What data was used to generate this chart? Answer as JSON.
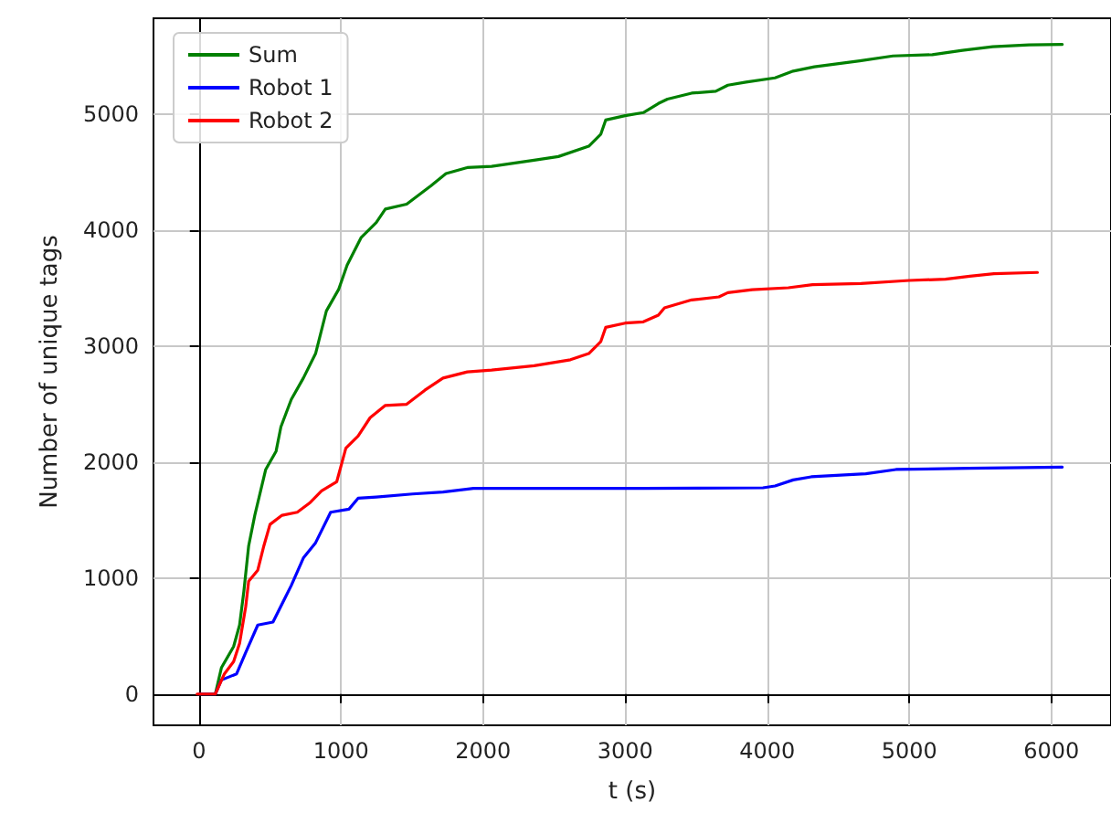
{
  "chart_data": {
    "type": "line",
    "xlabel": "t (s)",
    "ylabel": "Number of unique tags",
    "xlim": [
      -320,
      6420
    ],
    "ylim": [
      -270,
      5830
    ],
    "xticks": [
      0,
      1000,
      2000,
      3000,
      4000,
      5000,
      6000
    ],
    "yticks": [
      0,
      1000,
      2000,
      3000,
      4000,
      5000
    ],
    "grid": true,
    "legend": "top left",
    "marker": "none",
    "line_style": "solid",
    "series": [
      {
        "name": "Sum",
        "color": "#008000",
        "x": [
          0,
          115,
          158,
          244,
          286,
          316,
          350,
          393,
          470,
          543,
          577,
          650,
          735,
          821,
          897,
          983,
          1043,
          1141,
          1248,
          1312,
          1462,
          1632,
          1739,
          1889,
          2060,
          2359,
          2530,
          2744,
          2829,
          2863,
          3000,
          3128,
          3234,
          3298,
          3468,
          3638,
          3723,
          3851,
          4055,
          4183,
          4332,
          4651,
          4885,
          5162,
          5374,
          5587,
          5843,
          6077
        ],
        "values": [
          0,
          0,
          226,
          410,
          595,
          884,
          1279,
          1542,
          1937,
          2095,
          2305,
          2542,
          2726,
          2937,
          3305,
          3490,
          3700,
          3937,
          4068,
          4184,
          4226,
          4384,
          4490,
          4542,
          4552,
          4605,
          4637,
          4726,
          4831,
          4952,
          4990,
          5016,
          5095,
          5132,
          5184,
          5200,
          5253,
          5279,
          5316,
          5374,
          5411,
          5463,
          5505,
          5516,
          5553,
          5584,
          5600,
          5605
        ]
      },
      {
        "name": "Robot 1",
        "color": "#0000ff",
        "x": [
          0,
          115,
          158,
          265,
          329,
          414,
          521,
          607,
          650,
          735,
          821,
          927,
          1056,
          1120,
          1248,
          1504,
          1718,
          1932,
          2359,
          3128,
          3970,
          4055,
          4183,
          4310,
          4694,
          4906,
          5417,
          6077
        ],
        "values": [
          0,
          0,
          121,
          174,
          358,
          595,
          621,
          832,
          937,
          1174,
          1305,
          1568,
          1595,
          1689,
          1700,
          1726,
          1742,
          1774,
          1774,
          1774,
          1779,
          1795,
          1847,
          1874,
          1900,
          1937,
          1947,
          1958
        ]
      },
      {
        "name": "Robot 2",
        "color": "#ff0000",
        "x": [
          -13,
          115,
          179,
          244,
          286,
          329,
          350,
          414,
          457,
          500,
          585,
          692,
          778,
          863,
          970,
          1034,
          1120,
          1205,
          1312,
          1462,
          1590,
          1718,
          1889,
          2060,
          2359,
          2615,
          2744,
          2829,
          2863,
          3000,
          3128,
          3234,
          3277,
          3468,
          3660,
          3723,
          3894,
          4149,
          4319,
          4660,
          5000,
          5255,
          5426,
          5596,
          5902
        ],
        "values": [
          0,
          0,
          174,
          279,
          437,
          753,
          974,
          1068,
          1279,
          1463,
          1542,
          1568,
          1647,
          1753,
          1832,
          2121,
          2226,
          2384,
          2490,
          2500,
          2621,
          2726,
          2779,
          2795,
          2832,
          2884,
          2937,
          3042,
          3163,
          3200,
          3211,
          3268,
          3332,
          3400,
          3426,
          3463,
          3489,
          3505,
          3532,
          3542,
          3568,
          3579,
          3605,
          3626,
          3637
        ]
      }
    ]
  }
}
